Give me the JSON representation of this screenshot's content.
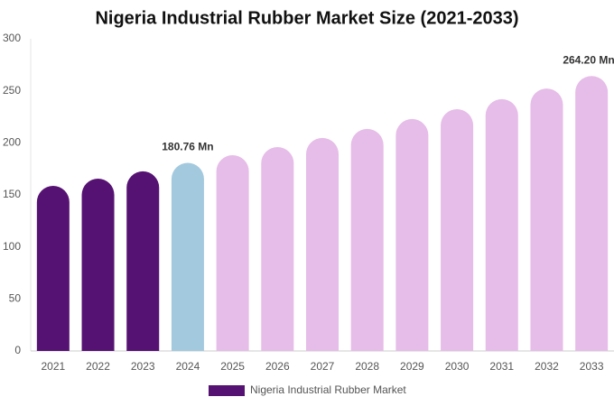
{
  "chart_data": {
    "type": "bar",
    "title": "Nigeria Industrial Rubber Market Size (2021-2033)",
    "categories": [
      "2021",
      "2022",
      "2023",
      "2024",
      "2025",
      "2026",
      "2027",
      "2028",
      "2029",
      "2030",
      "2031",
      "2032",
      "2033"
    ],
    "series": [
      {
        "name": "Nigeria Industrial Rubber Market",
        "color": "#561273",
        "bar_colors": [
          "#561273",
          "#561273",
          "#561273",
          "#a3c9de",
          "#e6bce8",
          "#e6bce8",
          "#e6bce8",
          "#e6bce8",
          "#e6bce8",
          "#e6bce8",
          "#e6bce8",
          "#e6bce8",
          "#e6bce8"
        ],
        "values": [
          158.7,
          165.6,
          172.6,
          180.76,
          188.2,
          196,
          204.7,
          213.4,
          222.9,
          232.4,
          242,
          252.2,
          264.2
        ],
        "value_labels": [
          null,
          null,
          null,
          "180.76 Mn",
          null,
          null,
          null,
          null,
          null,
          null,
          null,
          null,
          "264.20 Mn"
        ]
      }
    ],
    "ylim": [
      0,
      300
    ],
    "yticks": [
      0,
      50,
      100,
      150,
      200,
      250,
      300
    ],
    "grid": false,
    "legend": "bottom"
  }
}
